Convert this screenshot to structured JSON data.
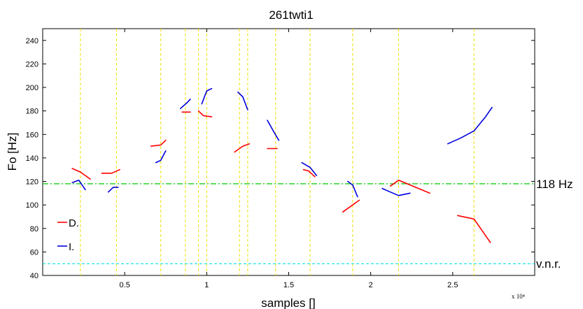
{
  "chart_data": {
    "type": "line",
    "title": "261twti1",
    "xlabel": "samples []",
    "ylabel": "Fo [Hz]",
    "x_exponent_label": "x 10⁴",
    "xlim": [
      0,
      3
    ],
    "ylim": [
      40,
      250
    ],
    "xticks": [
      0.5,
      1,
      1.5,
      2,
      2.5
    ],
    "xtick_labels": [
      "0.5",
      "1",
      "1.5",
      "2",
      "2.5"
    ],
    "yticks": [
      40,
      60,
      80,
      100,
      120,
      140,
      160,
      180,
      200,
      220,
      240
    ],
    "ytick_labels": [
      "40",
      "60",
      "80",
      "100",
      "120",
      "140",
      "160",
      "180",
      "200",
      "220",
      "240"
    ],
    "grid": false,
    "legend_position": "bottom-left",
    "vertical_markers": [
      0.23,
      0.45,
      0.72,
      0.87,
      0.95,
      1.0,
      1.2,
      1.25,
      1.42,
      1.63,
      1.89,
      2.17,
      2.63
    ],
    "vertical_marker_color": "#f0e000",
    "reference_lines": [
      {
        "value": 118,
        "label": "118 Hz",
        "color": "#00cc00",
        "style": "dashdot"
      },
      {
        "value": 50,
        "label": "v.n.r.",
        "color": "#00e0e0",
        "style": "dashed"
      }
    ],
    "series": [
      {
        "name": "D.",
        "color": "#ff0000",
        "segments": [
          [
            [
              0.18,
              131
            ],
            [
              0.23,
              128
            ],
            [
              0.29,
              122
            ]
          ],
          [
            [
              0.36,
              127
            ],
            [
              0.42,
              127
            ],
            [
              0.47,
              130
            ]
          ],
          [
            [
              0.66,
              150
            ],
            [
              0.72,
              151
            ],
            [
              0.75,
              155
            ]
          ],
          [
            [
              0.85,
              179
            ],
            [
              0.9,
              179
            ]
          ],
          [
            [
              0.95,
              180
            ],
            [
              0.98,
              176
            ],
            [
              1.03,
              175
            ]
          ],
          [
            [
              1.17,
              145
            ],
            [
              1.22,
              150
            ],
            [
              1.26,
              152
            ]
          ],
          [
            [
              1.37,
              148
            ],
            [
              1.43,
              148
            ]
          ],
          [
            [
              1.59,
              130
            ],
            [
              1.62,
              129
            ],
            [
              1.66,
              124
            ]
          ],
          [
            [
              1.83,
              94
            ],
            [
              1.88,
              99
            ],
            [
              1.93,
              104
            ]
          ],
          [
            [
              2.12,
              116
            ],
            [
              2.17,
              121
            ],
            [
              2.36,
              110
            ]
          ],
          [
            [
              2.53,
              91
            ],
            [
              2.63,
              88
            ],
            [
              2.73,
              68
            ]
          ]
        ]
      },
      {
        "name": "I.",
        "color": "#0000dd",
        "segments": [
          [
            [
              0.18,
              119
            ],
            [
              0.22,
              121
            ],
            [
              0.26,
              113
            ]
          ],
          [
            [
              0.4,
              111
            ],
            [
              0.43,
              115
            ],
            [
              0.46,
              115
            ]
          ],
          [
            [
              0.69,
              136
            ],
            [
              0.72,
              138
            ],
            [
              0.75,
              146
            ]
          ],
          [
            [
              0.84,
              182
            ],
            [
              0.88,
              187
            ],
            [
              0.9,
              190
            ]
          ],
          [
            [
              0.97,
              186
            ],
            [
              1.0,
              197
            ],
            [
              1.03,
              199
            ]
          ],
          [
            [
              1.19,
              196
            ],
            [
              1.22,
              192
            ],
            [
              1.25,
              181
            ]
          ],
          [
            [
              1.37,
              172
            ],
            [
              1.41,
              162
            ],
            [
              1.44,
              155
            ]
          ],
          [
            [
              1.58,
              136
            ],
            [
              1.63,
              132
            ],
            [
              1.67,
              125
            ]
          ],
          [
            [
              1.86,
              120
            ],
            [
              1.89,
              117
            ],
            [
              1.92,
              107
            ]
          ],
          [
            [
              2.07,
              114
            ],
            [
              2.12,
              111
            ],
            [
              2.17,
              108
            ],
            [
              2.24,
              110
            ]
          ],
          [
            [
              2.47,
              152
            ],
            [
              2.55,
              157
            ],
            [
              2.63,
              163
            ],
            [
              2.7,
              175
            ],
            [
              2.74,
              183
            ]
          ]
        ]
      }
    ]
  }
}
